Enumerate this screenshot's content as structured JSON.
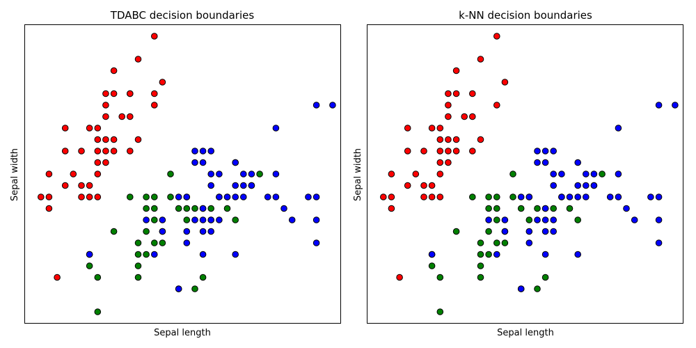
{
  "chart_data": [
    {
      "type": "scatter",
      "title": "TDABC decision boundaries",
      "xlabel": "Sepal length",
      "ylabel": "Sepal width",
      "xticks": "none",
      "yticks": "none",
      "grid": false,
      "legend": "none",
      "xlim": [
        4.1,
        8.0
      ],
      "ylim": [
        1.9,
        4.5
      ],
      "series": [
        {
          "color": "#ff0000",
          "points": [
            [
              4.3,
              3.0
            ],
            [
              4.4,
              2.9
            ],
            [
              4.4,
              3.0
            ],
            [
              4.4,
              3.2
            ],
            [
              4.5,
              2.3
            ],
            [
              4.6,
              3.1
            ],
            [
              4.6,
              3.4
            ],
            [
              4.6,
              3.6
            ],
            [
              4.7,
              3.2
            ],
            [
              4.8,
              3.0
            ],
            [
              4.8,
              3.1
            ],
            [
              4.8,
              3.4
            ],
            [
              4.9,
              3.0
            ],
            [
              4.9,
              3.1
            ],
            [
              4.9,
              3.6
            ],
            [
              5.0,
              3.0
            ],
            [
              5.0,
              3.2
            ],
            [
              5.0,
              3.3
            ],
            [
              5.0,
              3.4
            ],
            [
              5.0,
              3.5
            ],
            [
              5.0,
              3.6
            ],
            [
              5.1,
              3.3
            ],
            [
              5.1,
              3.4
            ],
            [
              5.1,
              3.5
            ],
            [
              5.1,
              3.7
            ],
            [
              5.1,
              3.8
            ],
            [
              5.2,
              3.4
            ],
            [
              5.2,
              3.5
            ],
            [
              5.2,
              4.1
            ],
            [
              5.3,
              3.7
            ],
            [
              5.4,
              3.4
            ],
            [
              5.4,
              3.7
            ],
            [
              5.4,
              3.9
            ],
            [
              5.5,
              3.5
            ],
            [
              5.5,
              4.2
            ],
            [
              5.7,
              3.8
            ],
            [
              5.7,
              4.4
            ],
            [
              5.8,
              4.0
            ],
            [
              5.1,
              3.9
            ],
            [
              5.2,
              3.9
            ],
            [
              5.4,
              3.9
            ],
            [
              5.7,
              3.9
            ]
          ]
        },
        {
          "color": "#008000",
          "points": [
            [
              4.9,
              2.4
            ],
            [
              4.9,
              2.5
            ],
            [
              5.0,
              2.0
            ],
            [
              5.0,
              2.3
            ],
            [
              5.2,
              2.7
            ],
            [
              5.5,
              2.3
            ],
            [
              5.5,
              2.4
            ],
            [
              5.5,
              2.5
            ],
            [
              5.5,
              2.6
            ],
            [
              5.6,
              2.5
            ],
            [
              5.6,
              2.7
            ],
            [
              5.6,
              2.9
            ],
            [
              5.7,
              2.6
            ],
            [
              5.7,
              2.8
            ],
            [
              5.7,
              2.9
            ],
            [
              5.7,
              3.0
            ],
            [
              5.8,
              2.6
            ],
            [
              5.8,
              2.7
            ],
            [
              5.9,
              3.0
            ],
            [
              5.9,
              3.2
            ],
            [
              6.0,
              2.2
            ],
            [
              6.0,
              2.9
            ],
            [
              6.1,
              2.8
            ],
            [
              6.1,
              3.0
            ],
            [
              6.2,
              2.2
            ],
            [
              6.2,
              2.9
            ],
            [
              6.3,
              2.3
            ],
            [
              6.3,
              2.9
            ],
            [
              6.4,
              2.9
            ],
            [
              6.5,
              3.0
            ],
            [
              6.6,
              2.9
            ],
            [
              6.7,
              2.8
            ],
            [
              7.0,
              3.2
            ],
            [
              6.1,
              2.9
            ],
            [
              6.6,
              3.0
            ],
            [
              5.4,
              3.0
            ],
            [
              5.6,
              3.0
            ]
          ]
        },
        {
          "color": "#0000ff",
          "points": [
            [
              4.9,
              2.5
            ],
            [
              5.6,
              2.8
            ],
            [
              5.7,
              2.5
            ],
            [
              5.8,
              2.7
            ],
            [
              5.8,
              2.8
            ],
            [
              6.0,
              2.2
            ],
            [
              6.0,
              3.0
            ],
            [
              6.1,
              2.6
            ],
            [
              6.1,
              3.0
            ],
            [
              6.2,
              2.8
            ],
            [
              6.2,
              3.4
            ],
            [
              6.3,
              2.5
            ],
            [
              6.3,
              2.7
            ],
            [
              6.3,
              2.8
            ],
            [
              6.3,
              2.9
            ],
            [
              6.3,
              3.3
            ],
            [
              6.4,
              2.7
            ],
            [
              6.4,
              2.8
            ],
            [
              6.4,
              3.1
            ],
            [
              6.4,
              3.2
            ],
            [
              6.5,
              3.0
            ],
            [
              6.5,
              3.2
            ],
            [
              6.7,
              2.5
            ],
            [
              6.7,
              3.0
            ],
            [
              6.7,
              3.1
            ],
            [
              6.7,
              3.3
            ],
            [
              6.8,
              3.0
            ],
            [
              6.8,
              3.2
            ],
            [
              6.9,
              3.1
            ],
            [
              6.9,
              3.2
            ],
            [
              7.1,
              3.0
            ],
            [
              7.2,
              3.0
            ],
            [
              7.2,
              3.2
            ],
            [
              7.2,
              3.6
            ],
            [
              7.3,
              2.9
            ],
            [
              7.4,
              2.8
            ],
            [
              7.6,
              3.0
            ],
            [
              7.7,
              2.6
            ],
            [
              7.7,
              2.8
            ],
            [
              7.7,
              3.0
            ],
            [
              7.7,
              3.8
            ],
            [
              7.9,
              3.8
            ],
            [
              6.4,
              3.4
            ],
            [
              6.4,
              2.8
            ],
            [
              6.5,
              2.8
            ],
            [
              6.9,
              3.1
            ],
            [
              6.7,
              3.3
            ],
            [
              6.2,
              3.3
            ],
            [
              6.1,
              2.7
            ],
            [
              6.6,
              3.0
            ],
            [
              6.3,
              3.4
            ],
            [
              6.8,
              3.1
            ]
          ]
        }
      ]
    },
    {
      "type": "scatter",
      "title": "k-NN decision boundaries",
      "xlabel": "Sepal length",
      "ylabel": "Sepal width",
      "xticks": "none",
      "yticks": "none",
      "grid": false,
      "legend": "none",
      "xlim": [
        4.1,
        8.0
      ],
      "ylim": [
        1.9,
        4.5
      ],
      "series": [
        {
          "color": "#ff0000",
          "points": [
            [
              4.3,
              3.0
            ],
            [
              4.4,
              2.9
            ],
            [
              4.4,
              3.0
            ],
            [
              4.4,
              3.2
            ],
            [
              4.5,
              2.3
            ],
            [
              4.6,
              3.1
            ],
            [
              4.6,
              3.4
            ],
            [
              4.6,
              3.6
            ],
            [
              4.7,
              3.2
            ],
            [
              4.8,
              3.0
            ],
            [
              4.8,
              3.1
            ],
            [
              4.8,
              3.4
            ],
            [
              4.9,
              3.0
            ],
            [
              4.9,
              3.1
            ],
            [
              4.9,
              3.6
            ],
            [
              5.0,
              3.0
            ],
            [
              5.0,
              3.2
            ],
            [
              5.0,
              3.3
            ],
            [
              5.0,
              3.4
            ],
            [
              5.0,
              3.5
            ],
            [
              5.0,
              3.6
            ],
            [
              5.1,
              3.3
            ],
            [
              5.1,
              3.4
            ],
            [
              5.1,
              3.5
            ],
            [
              5.1,
              3.7
            ],
            [
              5.1,
              3.8
            ],
            [
              5.2,
              3.4
            ],
            [
              5.2,
              3.5
            ],
            [
              5.2,
              4.1
            ],
            [
              5.3,
              3.7
            ],
            [
              5.4,
              3.4
            ],
            [
              5.4,
              3.7
            ],
            [
              5.4,
              3.9
            ],
            [
              5.5,
              3.5
            ],
            [
              5.5,
              4.2
            ],
            [
              5.7,
              3.8
            ],
            [
              5.7,
              4.4
            ],
            [
              5.8,
              4.0
            ],
            [
              5.1,
              3.9
            ],
            [
              5.2,
              3.9
            ]
          ]
        },
        {
          "color": "#008000",
          "points": [
            [
              4.9,
              2.4
            ],
            [
              4.9,
              2.5
            ],
            [
              5.0,
              2.0
            ],
            [
              5.0,
              2.3
            ],
            [
              5.2,
              2.7
            ],
            [
              5.5,
              2.3
            ],
            [
              5.5,
              2.4
            ],
            [
              5.5,
              2.5
            ],
            [
              5.5,
              2.6
            ],
            [
              5.6,
              2.5
            ],
            [
              5.6,
              2.7
            ],
            [
              5.6,
              2.9
            ],
            [
              5.7,
              2.6
            ],
            [
              5.7,
              2.8
            ],
            [
              5.7,
              2.9
            ],
            [
              5.7,
              3.0
            ],
            [
              5.8,
              2.6
            ],
            [
              5.8,
              2.7
            ],
            [
              5.9,
              3.0
            ],
            [
              5.9,
              3.2
            ],
            [
              6.0,
              2.2
            ],
            [
              6.0,
              2.9
            ],
            [
              6.1,
              2.8
            ],
            [
              6.2,
              2.2
            ],
            [
              6.2,
              2.9
            ],
            [
              6.3,
              2.3
            ],
            [
              6.3,
              2.9
            ],
            [
              6.4,
              2.9
            ],
            [
              6.5,
              3.0
            ],
            [
              6.6,
              2.9
            ],
            [
              6.7,
              2.8
            ],
            [
              7.0,
              3.2
            ],
            [
              5.4,
              3.0
            ],
            [
              5.6,
              3.0
            ],
            [
              6.1,
              3.0
            ]
          ]
        },
        {
          "color": "#0000ff",
          "points": [
            [
              4.9,
              2.5
            ],
            [
              5.6,
              2.8
            ],
            [
              5.7,
              2.5
            ],
            [
              5.8,
              2.7
            ],
            [
              5.8,
              2.8
            ],
            [
              6.0,
              2.2
            ],
            [
              6.0,
              3.0
            ],
            [
              6.1,
              2.6
            ],
            [
              6.1,
              3.0
            ],
            [
              6.2,
              2.8
            ],
            [
              6.2,
              3.4
            ],
            [
              6.3,
              2.5
            ],
            [
              6.3,
              2.7
            ],
            [
              6.3,
              2.8
            ],
            [
              6.3,
              2.9
            ],
            [
              6.3,
              3.3
            ],
            [
              6.4,
              2.7
            ],
            [
              6.4,
              2.8
            ],
            [
              6.4,
              3.1
            ],
            [
              6.4,
              3.2
            ],
            [
              6.5,
              3.0
            ],
            [
              6.5,
              3.2
            ],
            [
              6.7,
              2.5
            ],
            [
              6.7,
              3.0
            ],
            [
              6.7,
              3.1
            ],
            [
              6.7,
              3.3
            ],
            [
              6.8,
              3.0
            ],
            [
              6.8,
              3.2
            ],
            [
              6.9,
              3.1
            ],
            [
              6.9,
              3.2
            ],
            [
              7.1,
              3.0
            ],
            [
              7.2,
              3.0
            ],
            [
              7.2,
              3.2
            ],
            [
              7.2,
              3.6
            ],
            [
              7.3,
              2.9
            ],
            [
              7.4,
              2.8
            ],
            [
              7.6,
              3.0
            ],
            [
              7.7,
              2.6
            ],
            [
              7.7,
              2.8
            ],
            [
              7.7,
              3.0
            ],
            [
              7.7,
              3.8
            ],
            [
              7.9,
              3.8
            ],
            [
              6.4,
              3.4
            ],
            [
              6.3,
              3.4
            ],
            [
              6.6,
              3.0
            ],
            [
              6.1,
              2.7
            ],
            [
              6.2,
              3.3
            ],
            [
              6.8,
              3.1
            ],
            [
              6.9,
              3.1
            ]
          ]
        }
      ]
    }
  ]
}
